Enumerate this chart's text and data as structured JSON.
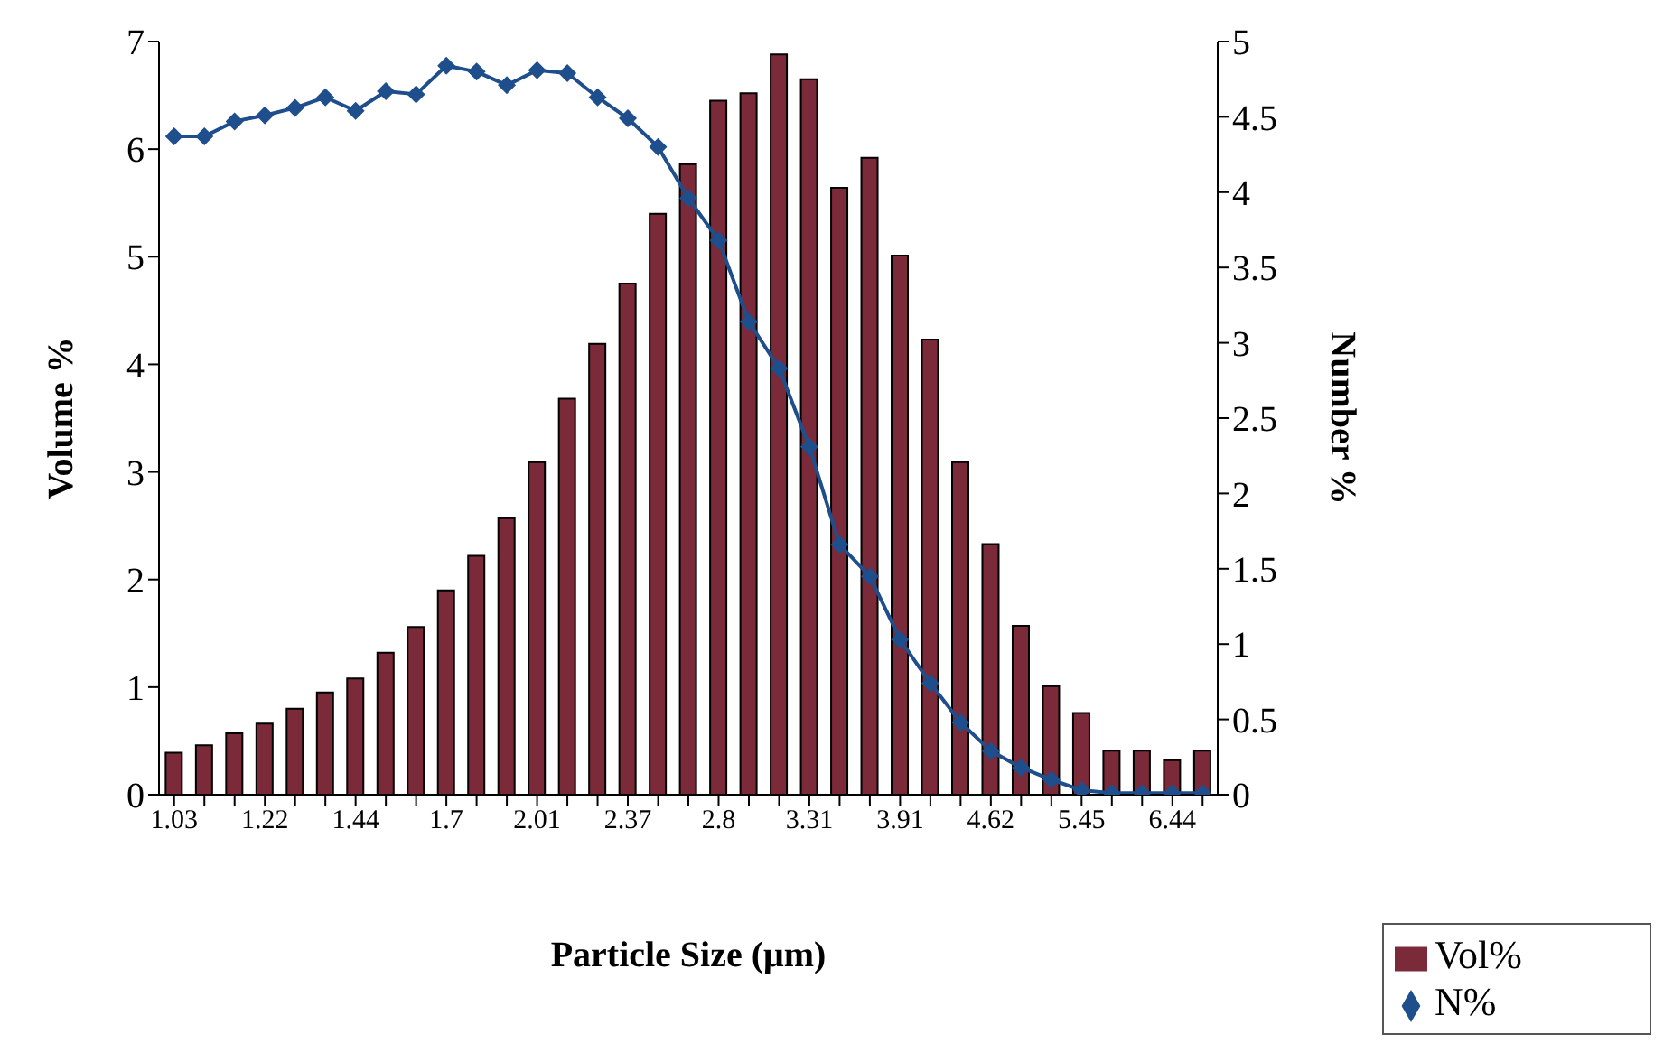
{
  "chart_data": {
    "type": "bar",
    "xlabel": "Particle Size (μm)",
    "ylabel": "Volume %",
    "y2label": "Number %",
    "categories": [
      "1.03",
      null,
      null,
      "1.22",
      null,
      null,
      "1.44",
      null,
      null,
      "1.7",
      null,
      null,
      "2.01",
      null,
      null,
      "2.37",
      null,
      null,
      "2.8",
      null,
      null,
      "3.31",
      null,
      null,
      "3.91",
      null,
      null,
      "4.62",
      null,
      null,
      "5.45",
      null,
      null,
      "6.44",
      null
    ],
    "series": [
      {
        "name": "Vol%",
        "color": "#7b2a3a",
        "values": [
          0.39,
          0.46,
          0.57,
          0.66,
          0.8,
          0.95,
          1.08,
          1.32,
          1.56,
          1.9,
          2.22,
          2.57,
          3.09,
          3.68,
          4.19,
          4.75,
          5.4,
          5.86,
          6.45,
          6.52,
          6.88,
          6.65,
          5.64,
          5.92,
          5.01,
          4.23,
          3.09,
          2.33,
          1.57,
          1.01,
          0.76,
          0.41,
          0.41,
          0.32,
          0.41
        ]
      },
      {
        "name": "N%",
        "type": "line",
        "axis": "y2",
        "color": "#1f4e8c",
        "marker": "diamond",
        "values": [
          4.37,
          4.37,
          4.47,
          4.51,
          4.56,
          4.63,
          4.54,
          4.67,
          4.65,
          4.84,
          4.8,
          4.71,
          4.81,
          4.79,
          4.63,
          4.49,
          4.3,
          3.96,
          3.68,
          3.14,
          2.83,
          2.31,
          1.66,
          1.45,
          1.03,
          0.74,
          0.48,
          0.29,
          0.18,
          0.1,
          0.03,
          0.01,
          0.01,
          0.01,
          0.01
        ]
      }
    ],
    "ylim": [
      0,
      7
    ],
    "yticks": [
      0,
      1,
      2,
      3,
      4,
      5,
      6,
      7
    ],
    "y2lim": [
      0,
      5
    ],
    "y2ticks": [
      0,
      0.5,
      1,
      1.5,
      2,
      2.5,
      3,
      3.5,
      4,
      4.5,
      5
    ],
    "legend": "bottom right",
    "grid": false
  }
}
